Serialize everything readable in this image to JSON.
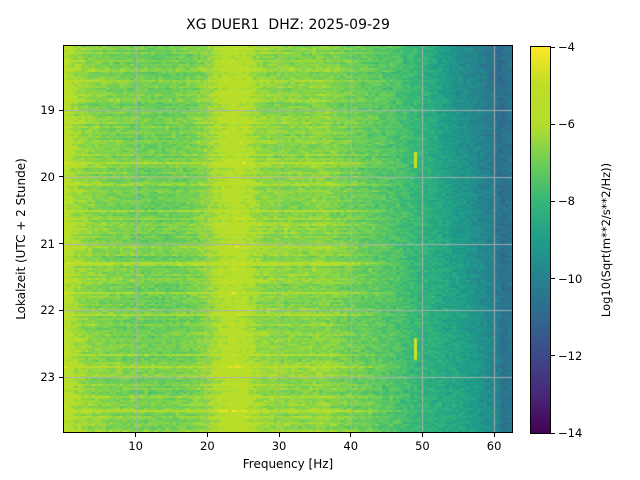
{
  "figure": {
    "title": "XG DUER1  DHZ: 2025-09-29",
    "background": "#ffffff"
  },
  "axes": {
    "xlabel": "Frequency [Hz]",
    "ylabel": "Lokalzeit (UTC + 2 Stunde)",
    "x_ticks": {
      "values": [
        10,
        20,
        30,
        40,
        50,
        60
      ],
      "labels": [
        "10",
        "20",
        "30",
        "40",
        "50",
        "60"
      ]
    },
    "y_ticks": {
      "values": [
        19,
        20,
        21,
        22,
        23
      ],
      "labels": [
        "19",
        "20",
        "21",
        "22",
        "23"
      ]
    },
    "grid_color": "#b0b0b0",
    "spine_color": "#000000"
  },
  "colorbar": {
    "label": "Log10(Sqrt(m**2/s**2/Hz))",
    "ticks": {
      "values": [
        -4,
        -6,
        -8,
        -10,
        -12,
        -14
      ],
      "labels": [
        "−4",
        "−6",
        "−8",
        "−10",
        "−12",
        "−14"
      ]
    }
  },
  "chart_data": {
    "type": "heatmap",
    "subtype": "spectrogram",
    "title": "XG DUER1  DHZ: 2025-09-29",
    "xlabel": "Frequency [Hz]",
    "ylabel": "Lokalzeit (UTC + 2 Stunde)",
    "colorbar_label": "Log10(Sqrt(m**2/s**2/Hz))",
    "colormap": "viridis",
    "colormap_stops": [
      "#440154",
      "#482878",
      "#3e4989",
      "#31688e",
      "#26828e",
      "#1f9e89",
      "#35b779",
      "#6ece58",
      "#b5de2b",
      "#bdde26",
      "#fde725"
    ],
    "clim": [
      -14,
      -4
    ],
    "x_range": [
      0,
      62.5
    ],
    "y_range": [
      18.04,
      23.82
    ],
    "y_direction": "down",
    "grid": true,
    "freq_profile": [
      [
        0,
        -5.55
      ],
      [
        0.6,
        -5.8
      ],
      [
        1.5,
        -6.2
      ],
      [
        3,
        -6.5
      ],
      [
        6,
        -6.75
      ],
      [
        10,
        -6.9
      ],
      [
        14,
        -7.0
      ],
      [
        18,
        -6.85
      ],
      [
        20,
        -6.5
      ],
      [
        21.5,
        -6.05
      ],
      [
        22.5,
        -5.85
      ],
      [
        24,
        -5.7
      ],
      [
        25.3,
        -5.9
      ],
      [
        26.5,
        -6.25
      ],
      [
        28,
        -6.5
      ],
      [
        31,
        -6.6
      ],
      [
        34,
        -6.65
      ],
      [
        36,
        -6.55
      ],
      [
        38,
        -6.75
      ],
      [
        40,
        -6.95
      ],
      [
        43,
        -7.2
      ],
      [
        46,
        -7.5
      ],
      [
        48,
        -7.8
      ],
      [
        50,
        -8.15
      ],
      [
        52,
        -8.5
      ],
      [
        54,
        -8.9
      ],
      [
        56,
        -9.2
      ],
      [
        58,
        -9.6
      ],
      [
        59.5,
        -10.0
      ],
      [
        60.5,
        -10.3
      ],
      [
        61.2,
        -10.7
      ],
      [
        62,
        -10.5
      ],
      [
        62.5,
        -10.3
      ]
    ],
    "transients": [
      {
        "t0": 19.62,
        "t1": 19.88,
        "f0": 48.7,
        "f1": 49.4,
        "v": -4.8
      },
      {
        "t0": 22.42,
        "t1": 22.75,
        "f0": 48.7,
        "f1": 49.4,
        "v": -4.7
      }
    ],
    "texture": {
      "noise": 0.55,
      "row_jitter": 0.3,
      "streak_chance": 0.07,
      "streak_min": 0.35,
      "streak_max": 0.85,
      "streak_fade_start": 40,
      "streak_fade_end": 48,
      "band_speckle": {
        "f0": 21.5,
        "f1": 27,
        "chance": 0.12,
        "boost": 0.55
      },
      "highfreq_time_gradient": {
        "f_start": 50,
        "f_full": 55,
        "f_cut": 61.2,
        "per_hour": 0.16,
        "t_ref": 21
      }
    }
  }
}
